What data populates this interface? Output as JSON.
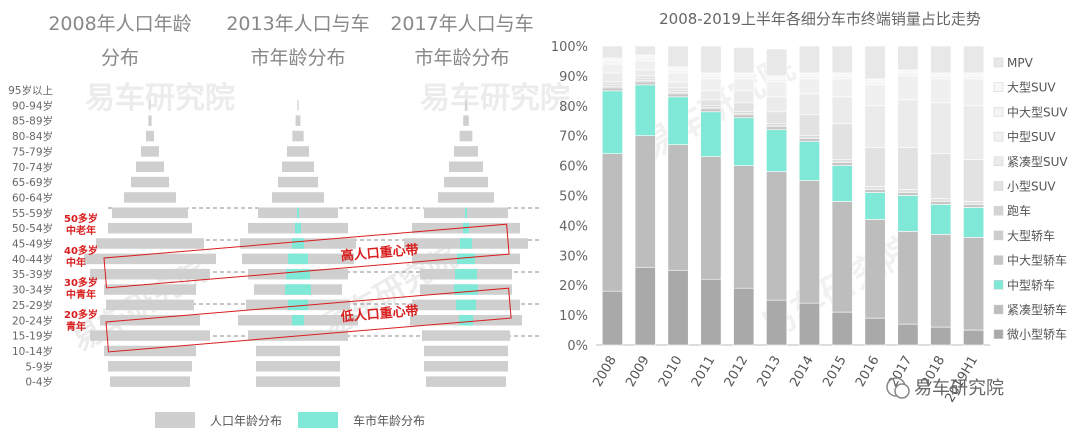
{
  "colors": {
    "population": "#cfcfcf",
    "car": "#7fe8d6",
    "annotation": "#d81e1e",
    "dash": "#666666",
    "axis_text": "#666666"
  },
  "left": {
    "titles": [
      [
        "2008年人口年龄",
        "分布"
      ],
      [
        "2013年人口与车",
        "市年龄分布"
      ],
      [
        "2017年人口与车",
        "市年龄分布"
      ]
    ],
    "legend": [
      "人口年龄分布",
      "车市年龄分布"
    ],
    "bands": [
      "高人口重心带",
      "低人口重心带"
    ],
    "annotations": [
      [
        "50多岁",
        "中老年"
      ],
      [
        "40多岁",
        "中年"
      ],
      [
        "30多岁",
        "中青年"
      ],
      [
        "20多岁",
        "青年"
      ]
    ],
    "watermark": "易车研究院"
  },
  "right": {
    "watermark": "易车研究院",
    "footer_brand": "易车研究院"
  },
  "chart_data": [
    {
      "type": "bar",
      "orientation": "horizontal-pyramid",
      "title": "2008年人口年龄分布",
      "categories": [
        "95岁以上",
        "90-94岁",
        "85-89岁",
        "80-84岁",
        "75-79岁",
        "70-74岁",
        "65-69岁",
        "60-64岁",
        "55-59岁",
        "50-54岁",
        "45-49岁",
        "40-44岁",
        "35-39岁",
        "30-34岁",
        "25-29岁",
        "20-24岁",
        "15-19岁",
        "10-14岁",
        "5-9岁",
        "0-4岁"
      ],
      "series": [
        {
          "name": "人口年龄分布",
          "values": [
            0,
            0.2,
            0.8,
            2,
            4.5,
            7,
            9.5,
            13,
            19,
            21,
            27,
            33,
            30,
            23,
            22,
            25,
            30,
            23,
            21,
            20
          ]
        }
      ]
    },
    {
      "type": "bar",
      "orientation": "horizontal-pyramid",
      "title": "2013年人口与车市年龄分布",
      "categories": [
        "95岁以上",
        "90-94岁",
        "85-89岁",
        "80-84岁",
        "75-79岁",
        "70-74岁",
        "65-69岁",
        "60-64岁",
        "55-59岁",
        "50-54岁",
        "45-49岁",
        "40-44岁",
        "35-39岁",
        "30-34岁",
        "25-29岁",
        "20-24岁",
        "15-19岁",
        "10-14岁",
        "5-9岁",
        "0-4岁"
      ],
      "series": [
        {
          "name": "人口年龄分布",
          "values": [
            0,
            0.3,
            1.2,
            2.8,
            5.5,
            8,
            10,
            13,
            20,
            25,
            29,
            28,
            25,
            22,
            26,
            30,
            25,
            21,
            21,
            21
          ]
        },
        {
          "name": "车市年龄分布",
          "values": [
            0,
            0,
            0,
            0,
            0,
            0,
            0,
            0,
            0.5,
            1.5,
            3,
            5,
            6,
            6.5,
            5,
            3,
            0,
            0,
            0,
            0
          ]
        }
      ]
    },
    {
      "type": "bar",
      "orientation": "horizontal-pyramid",
      "title": "2017年人口与车市年龄分布",
      "categories": [
        "95岁以上",
        "90-94岁",
        "85-89岁",
        "80-84岁",
        "75-79岁",
        "70-74岁",
        "65-69岁",
        "60-64岁",
        "55-59岁",
        "50-54岁",
        "45-49岁",
        "40-44岁",
        "35-39岁",
        "30-34岁",
        "25-29岁",
        "20-24岁",
        "15-19岁",
        "10-14岁",
        "5-9岁",
        "0-4岁"
      ],
      "series": [
        {
          "name": "人口年龄分布",
          "values": [
            0,
            0.4,
            1.4,
            3.2,
            6,
            8.5,
            11,
            14,
            21,
            27,
            31,
            27,
            23,
            23,
            27,
            28,
            22,
            21,
            21,
            20
          ]
        },
        {
          "name": "车市年龄分布",
          "values": [
            0,
            0,
            0,
            0,
            0,
            0,
            0,
            0,
            0.5,
            1.5,
            3,
            4.5,
            5.5,
            6,
            5,
            3.5,
            0,
            0,
            0,
            0
          ]
        }
      ]
    },
    {
      "type": "bar",
      "stacked": true,
      "title": "2008-2019上半年各细分车市终端销量占比走势",
      "categories": [
        "2008",
        "2009",
        "2010",
        "2011",
        "2012",
        "2013",
        "2014",
        "2015",
        "2016",
        "2017",
        "2018",
        "2019H1"
      ],
      "ylim": [
        0,
        100
      ],
      "yticks": [
        "0%",
        "10%",
        "20%",
        "30%",
        "40%",
        "50%",
        "60%",
        "70%",
        "80%",
        "90%",
        "100%"
      ],
      "legend_position": "right",
      "series": [
        {
          "name": "微小型轿车",
          "color": "#a9a9a9",
          "values": [
            18,
            26,
            25,
            22,
            19,
            15,
            14,
            11,
            9,
            7,
            6,
            5
          ]
        },
        {
          "name": "紧凑型轿车",
          "color": "#bdbdbd",
          "values": [
            46,
            44,
            42,
            41,
            41,
            43,
            41,
            37,
            33,
            31,
            31,
            31
          ]
        },
        {
          "name": "中型轿车",
          "color": "#7fe8d6",
          "values": [
            21,
            17,
            16,
            15,
            16,
            14,
            13,
            12,
            9,
            12,
            10,
            10
          ]
        },
        {
          "name": "中大型轿车",
          "color": "#c6c6c6",
          "values": [
            1,
            1,
            1,
            1,
            1,
            1,
            1,
            1,
            1,
            1,
            1,
            1
          ]
        },
        {
          "name": "大型轿车",
          "color": "#cdcdcd",
          "values": [
            0.5,
            0.5,
            0.5,
            0.5,
            0.5,
            0.5,
            0.5,
            0.5,
            0.5,
            0.5,
            0.5,
            0.5
          ]
        },
        {
          "name": "跑车",
          "color": "#d4d4d4",
          "values": [
            0.5,
            0.5,
            0.5,
            0.5,
            0.5,
            0.5,
            0.5,
            0.5,
            0.5,
            0.5,
            0.5,
            0.5
          ]
        },
        {
          "name": "小型SUV",
          "color": "#e2e2e2",
          "values": [
            1,
            1,
            1,
            2,
            3,
            4,
            7,
            12,
            13,
            14,
            15,
            14
          ]
        },
        {
          "name": "紧凑型SUV",
          "color": "#ebebeb",
          "values": [
            3,
            2,
            2,
            3,
            4,
            5,
            7,
            9,
            14,
            16,
            17,
            18
          ]
        },
        {
          "name": "中型SUV",
          "color": "#f0f0f0",
          "values": [
            3,
            3,
            3,
            4,
            4,
            5,
            5,
            6,
            7,
            8,
            8,
            9
          ]
        },
        {
          "name": "中大型SUV",
          "color": "#f4f4f4",
          "values": [
            1,
            1,
            1,
            1,
            1,
            1,
            1,
            1,
            1,
            1,
            1,
            1
          ]
        },
        {
          "name": "大型SUV",
          "color": "#f7f7f7",
          "values": [
            1,
            1,
            1,
            1,
            1,
            1,
            1,
            1,
            1,
            1,
            1,
            1
          ]
        },
        {
          "name": "MPV",
          "color": "#e8e8e8",
          "values": [
            4,
            3,
            7,
            9,
            8.5,
            9,
            9,
            9,
            11,
            8,
            9,
            9
          ]
        }
      ]
    }
  ]
}
